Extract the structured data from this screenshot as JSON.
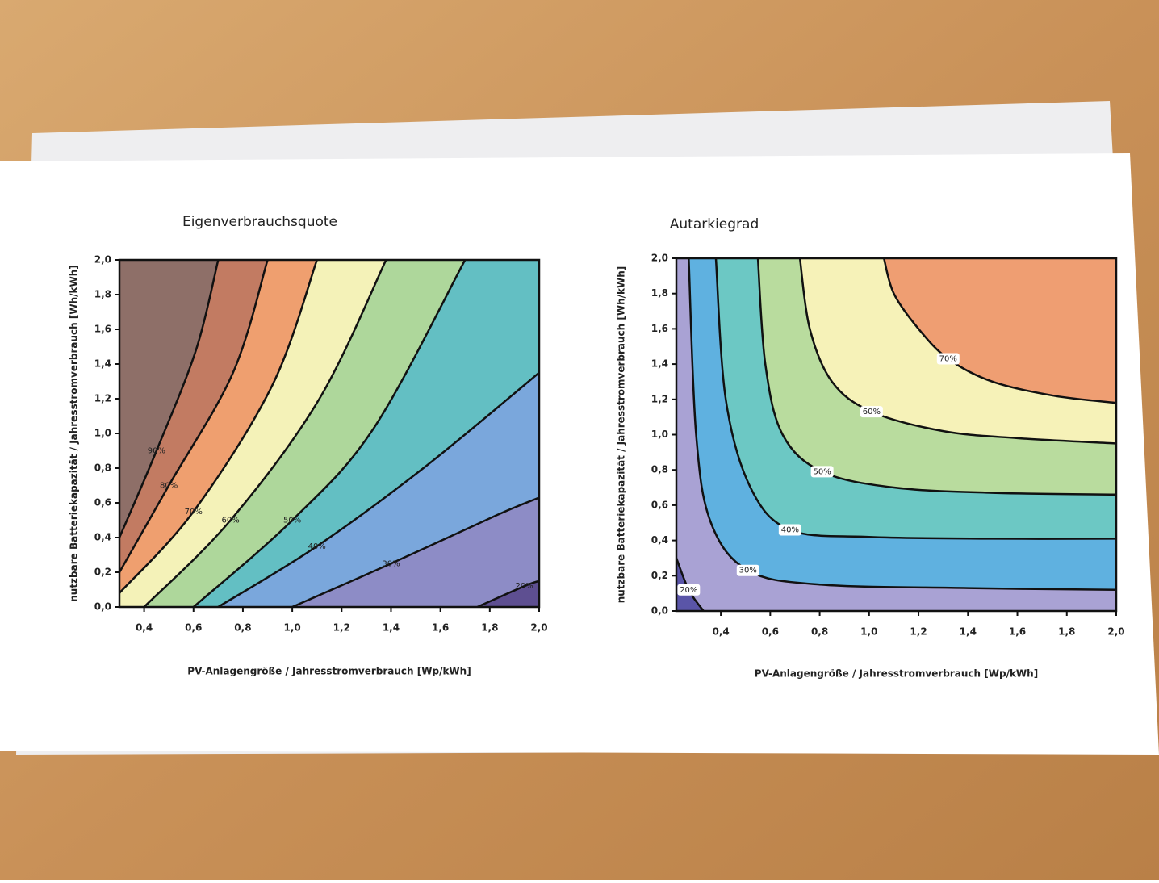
{
  "chart_data": [
    {
      "type": "contour",
      "title": "Eigenverbrauchsquote",
      "xlabel": "PV-Anlagengröße / Jahresstromverbrauch [Wp/kWh]",
      "ylabel": "nutzbare Batteriekapazität / Jahresstromverbrauch [Wh/kWh]",
      "xlim": [
        0.3,
        2.0
      ],
      "ylim": [
        0,
        2.0
      ],
      "xticks": [
        {
          "value": 0.4,
          "label": "0,4"
        },
        {
          "value": 0.6,
          "label": "0,6"
        },
        {
          "value": 0.8,
          "label": "0,8"
        },
        {
          "value": 1.0,
          "label": "1,0"
        },
        {
          "value": 1.2,
          "label": "1,2"
        },
        {
          "value": 1.4,
          "label": "1,4"
        },
        {
          "value": 1.6,
          "label": "1,6"
        },
        {
          "value": 1.8,
          "label": "1,8"
        },
        {
          "value": 2.0,
          "label": "2,0"
        }
      ],
      "yticks": [
        {
          "value": 0,
          "label": "0,0"
        },
        {
          "value": 0.2,
          "label": "0,2"
        },
        {
          "value": 0.4,
          "label": "0,4"
        },
        {
          "value": 0.6,
          "label": "0,6"
        },
        {
          "value": 0.8,
          "label": "0,8"
        },
        {
          "value": 1.0,
          "label": "1,0"
        },
        {
          "value": 1.2,
          "label": "1,2"
        },
        {
          "value": 1.4,
          "label": "1,4"
        },
        {
          "value": 1.6,
          "label": "1,6"
        },
        {
          "value": 1.8,
          "label": "1,8"
        },
        {
          "value": 2.0,
          "label": "2,0"
        }
      ],
      "base_color": "#5e4f91",
      "levels": [
        {
          "value": 20,
          "label": "20%",
          "color": "#8d8cc6",
          "x": [
            1.75,
            1.94,
            2.0
          ],
          "y": [
            0,
            0.12,
            0.15
          ]
        },
        {
          "value": 30,
          "label": "30%",
          "color": "#7aa7dc",
          "x": [
            1.0,
            1.4,
            1.83,
            2.0
          ],
          "y": [
            0,
            0.25,
            0.53,
            0.63
          ]
        },
        {
          "value": 40,
          "label": "40%",
          "color": "#63bfc3",
          "x": [
            0.7,
            1.1,
            1.54,
            2.0
          ],
          "y": [
            0,
            0.35,
            0.81,
            1.35
          ]
        },
        {
          "value": 50,
          "label": "50%",
          "color": "#aed79b",
          "x": [
            0.6,
            1.0,
            1.33,
            1.7
          ],
          "y": [
            0,
            0.5,
            1.03,
            2.0
          ]
        },
        {
          "value": 60,
          "label": "60%",
          "color": "#f4f2b8",
          "x": [
            0.4,
            0.75,
            1.11,
            1.38
          ],
          "y": [
            0,
            0.5,
            1.2,
            2.0
          ]
        },
        {
          "value": 70,
          "label": "70%",
          "color": "#ef9f6f",
          "x": [
            0.3,
            0.6,
            0.92,
            1.1
          ],
          "y": [
            0.08,
            0.55,
            1.28,
            2.0
          ]
        },
        {
          "value": 80,
          "label": "80%",
          "color": "#c27b62",
          "x": [
            0.3,
            0.5,
            0.76,
            0.9
          ],
          "y": [
            0.2,
            0.7,
            1.35,
            2.0
          ]
        },
        {
          "value": 90,
          "label": "90%",
          "color": "#8e6f68",
          "x": [
            0.3,
            0.45,
            0.61,
            0.7
          ],
          "y": [
            0.4,
            0.9,
            1.48,
            2.0
          ]
        }
      ]
    },
    {
      "type": "contour",
      "title": "Autarkiegrad",
      "xlabel": "PV-Anlagengröße / Jahresstromverbrauch [Wp/kWh]",
      "ylabel": "nutzbare Batteriekapazität / Jahresstromverbrauch [Wh/kWh]",
      "xlim": [
        0.22,
        2.0
      ],
      "ylim": [
        0,
        2.0
      ],
      "xticks": [
        {
          "value": 0.4,
          "label": "0,4"
        },
        {
          "value": 0.6,
          "label": "0,6"
        },
        {
          "value": 0.8,
          "label": "0,8"
        },
        {
          "value": 1.0,
          "label": "1,0"
        },
        {
          "value": 1.2,
          "label": "1,2"
        },
        {
          "value": 1.4,
          "label": "1,4"
        },
        {
          "value": 1.6,
          "label": "1,6"
        },
        {
          "value": 1.8,
          "label": "1,8"
        },
        {
          "value": 2.0,
          "label": "2,0"
        }
      ],
      "yticks": [
        {
          "value": 0,
          "label": "0,0"
        },
        {
          "value": 0.2,
          "label": "0,2"
        },
        {
          "value": 0.4,
          "label": "0,4"
        },
        {
          "value": 0.6,
          "label": "0,6"
        },
        {
          "value": 0.8,
          "label": "0,8"
        },
        {
          "value": 1.0,
          "label": "1,0"
        },
        {
          "value": 1.2,
          "label": "1,2"
        },
        {
          "value": 1.4,
          "label": "1,4"
        },
        {
          "value": 1.6,
          "label": "1,6"
        },
        {
          "value": 1.8,
          "label": "1,8"
        },
        {
          "value": 2.0,
          "label": "2,0"
        }
      ],
      "base_color": "#5a55a8",
      "levels": [
        {
          "value": 20,
          "label": "20%",
          "color": "#a9a2d4",
          "x": [
            0.22,
            0.27,
            0.33
          ],
          "y": [
            0.3,
            0.12,
            0
          ]
        },
        {
          "value": 30,
          "label": "30%",
          "color": "#5fb1e0",
          "x": [
            0.27,
            0.3,
            0.36,
            0.51,
            0.8,
            1.4,
            2.0
          ],
          "y": [
            2.0,
            1.0,
            0.5,
            0.23,
            0.15,
            0.13,
            0.12
          ]
        },
        {
          "value": 40,
          "label": "40%",
          "color": "#6cc8c4",
          "x": [
            0.38,
            0.42,
            0.52,
            0.68,
            1.0,
            1.5,
            2.0
          ],
          "y": [
            2.0,
            1.2,
            0.7,
            0.46,
            0.42,
            0.41,
            0.41
          ]
        },
        {
          "value": 50,
          "label": "50%",
          "color": "#b9dc9e",
          "x": [
            0.55,
            0.58,
            0.65,
            0.81,
            1.1,
            1.5,
            2.0
          ],
          "y": [
            2.0,
            1.4,
            1.0,
            0.79,
            0.7,
            0.67,
            0.66
          ]
        },
        {
          "value": 60,
          "label": "60%",
          "color": "#f6f2b8",
          "x": [
            0.72,
            0.76,
            0.85,
            1.01,
            1.3,
            1.6,
            2.0
          ],
          "y": [
            2.0,
            1.6,
            1.3,
            1.13,
            1.02,
            0.98,
            0.95
          ]
        },
        {
          "value": 70,
          "label": "70%",
          "color": "#ef9e72",
          "x": [
            1.06,
            1.1,
            1.2,
            1.32,
            1.5,
            1.75,
            2.0
          ],
          "y": [
            2.0,
            1.8,
            1.6,
            1.43,
            1.3,
            1.22,
            1.18
          ]
        }
      ]
    }
  ]
}
